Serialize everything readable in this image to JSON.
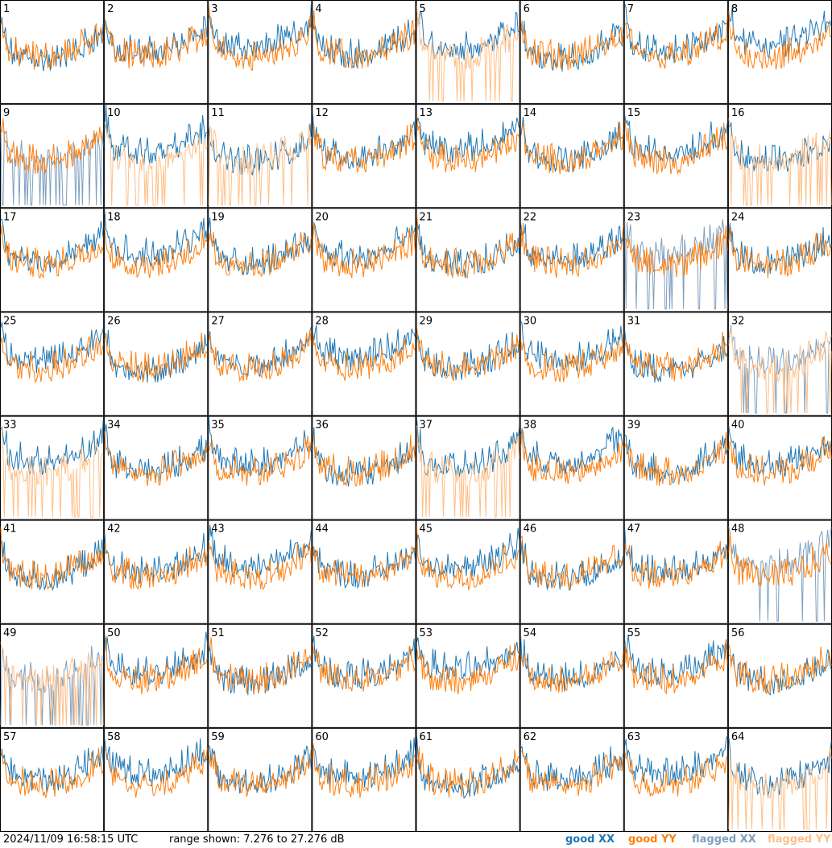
{
  "footer": {
    "timestamp": "2024/11/09 16:58:15 UTC",
    "range": "range shown: 7.276 to 27.276 dB",
    "legend": [
      {
        "key": "good_xx",
        "label": "good XX",
        "color": "#1f77b4"
      },
      {
        "key": "good_yy",
        "label": "good YY",
        "color": "#ff7f0e"
      },
      {
        "key": "flagged_xx",
        "label": "flagged XX",
        "color": "#7f9fbf"
      },
      {
        "key": "flagged_yy",
        "label": "flagged YY",
        "color": "#ffbf87"
      }
    ]
  },
  "chart_data": {
    "type": "line",
    "panel_count": 64,
    "layout": "8x8 grid of antenna spectra",
    "ylim_db": [
      7.276,
      27.276
    ],
    "series_names": [
      "good XX",
      "good YY",
      "flagged XX",
      "flagged YY"
    ],
    "panels": [
      {
        "id": 1,
        "xx": "good",
        "yy": "good"
      },
      {
        "id": 2,
        "xx": "good",
        "yy": "good"
      },
      {
        "id": 3,
        "xx": "good",
        "yy": "good"
      },
      {
        "id": 4,
        "xx": "good",
        "yy": "good"
      },
      {
        "id": 5,
        "xx": "good",
        "yy": "flagged"
      },
      {
        "id": 6,
        "xx": "good",
        "yy": "good"
      },
      {
        "id": 7,
        "xx": "good",
        "yy": "good"
      },
      {
        "id": 8,
        "xx": "good",
        "yy": "good"
      },
      {
        "id": 9,
        "xx": "flagged",
        "yy": "good"
      },
      {
        "id": 10,
        "xx": "good",
        "yy": "flagged"
      },
      {
        "id": 11,
        "xx": "good",
        "yy": "flagged"
      },
      {
        "id": 12,
        "xx": "good",
        "yy": "good"
      },
      {
        "id": 13,
        "xx": "good",
        "yy": "good"
      },
      {
        "id": 14,
        "xx": "good",
        "yy": "good"
      },
      {
        "id": 15,
        "xx": "good",
        "yy": "good"
      },
      {
        "id": 16,
        "xx": "good",
        "yy": "flagged"
      },
      {
        "id": 17,
        "xx": "good",
        "yy": "good"
      },
      {
        "id": 18,
        "xx": "good",
        "yy": "good"
      },
      {
        "id": 19,
        "xx": "good",
        "yy": "good"
      },
      {
        "id": 20,
        "xx": "good",
        "yy": "good"
      },
      {
        "id": 21,
        "xx": "good",
        "yy": "good"
      },
      {
        "id": 22,
        "xx": "good",
        "yy": "good"
      },
      {
        "id": 23,
        "xx": "flagged",
        "yy": "good"
      },
      {
        "id": 24,
        "xx": "good",
        "yy": "good"
      },
      {
        "id": 25,
        "xx": "good",
        "yy": "good"
      },
      {
        "id": 26,
        "xx": "good",
        "yy": "good"
      },
      {
        "id": 27,
        "xx": "good",
        "yy": "good"
      },
      {
        "id": 28,
        "xx": "good",
        "yy": "good"
      },
      {
        "id": 29,
        "xx": "good",
        "yy": "good"
      },
      {
        "id": 30,
        "xx": "good",
        "yy": "good"
      },
      {
        "id": 31,
        "xx": "good",
        "yy": "good"
      },
      {
        "id": 32,
        "xx": "flagged",
        "yy": "flagged"
      },
      {
        "id": 33,
        "xx": "good",
        "yy": "flagged"
      },
      {
        "id": 34,
        "xx": "good",
        "yy": "good"
      },
      {
        "id": 35,
        "xx": "good",
        "yy": "good"
      },
      {
        "id": 36,
        "xx": "good",
        "yy": "good"
      },
      {
        "id": 37,
        "xx": "good",
        "yy": "flagged"
      },
      {
        "id": 38,
        "xx": "good",
        "yy": "good"
      },
      {
        "id": 39,
        "xx": "good",
        "yy": "good"
      },
      {
        "id": 40,
        "xx": "good",
        "yy": "good"
      },
      {
        "id": 41,
        "xx": "good",
        "yy": "good"
      },
      {
        "id": 42,
        "xx": "good",
        "yy": "good"
      },
      {
        "id": 43,
        "xx": "good",
        "yy": "good"
      },
      {
        "id": 44,
        "xx": "good",
        "yy": "good"
      },
      {
        "id": 45,
        "xx": "good",
        "yy": "good"
      },
      {
        "id": 46,
        "xx": "good",
        "yy": "good"
      },
      {
        "id": 47,
        "xx": "good",
        "yy": "good"
      },
      {
        "id": 48,
        "xx": "flagged",
        "yy": "good"
      },
      {
        "id": 49,
        "xx": "flagged",
        "yy": "flagged"
      },
      {
        "id": 50,
        "xx": "good",
        "yy": "good"
      },
      {
        "id": 51,
        "xx": "good",
        "yy": "good"
      },
      {
        "id": 52,
        "xx": "good",
        "yy": "good"
      },
      {
        "id": 53,
        "xx": "good",
        "yy": "good"
      },
      {
        "id": 54,
        "xx": "good",
        "yy": "good"
      },
      {
        "id": 55,
        "xx": "good",
        "yy": "good"
      },
      {
        "id": 56,
        "xx": "good",
        "yy": "good"
      },
      {
        "id": 57,
        "xx": "good",
        "yy": "good"
      },
      {
        "id": 58,
        "xx": "good",
        "yy": "good"
      },
      {
        "id": 59,
        "xx": "good",
        "yy": "good"
      },
      {
        "id": 60,
        "xx": "good",
        "yy": "good"
      },
      {
        "id": 61,
        "xx": "good",
        "yy": "good"
      },
      {
        "id": 62,
        "xx": "good",
        "yy": "good"
      },
      {
        "id": 63,
        "xx": "good",
        "yy": "good"
      },
      {
        "id": 64,
        "xx": "good",
        "yy": "flagged"
      }
    ]
  }
}
